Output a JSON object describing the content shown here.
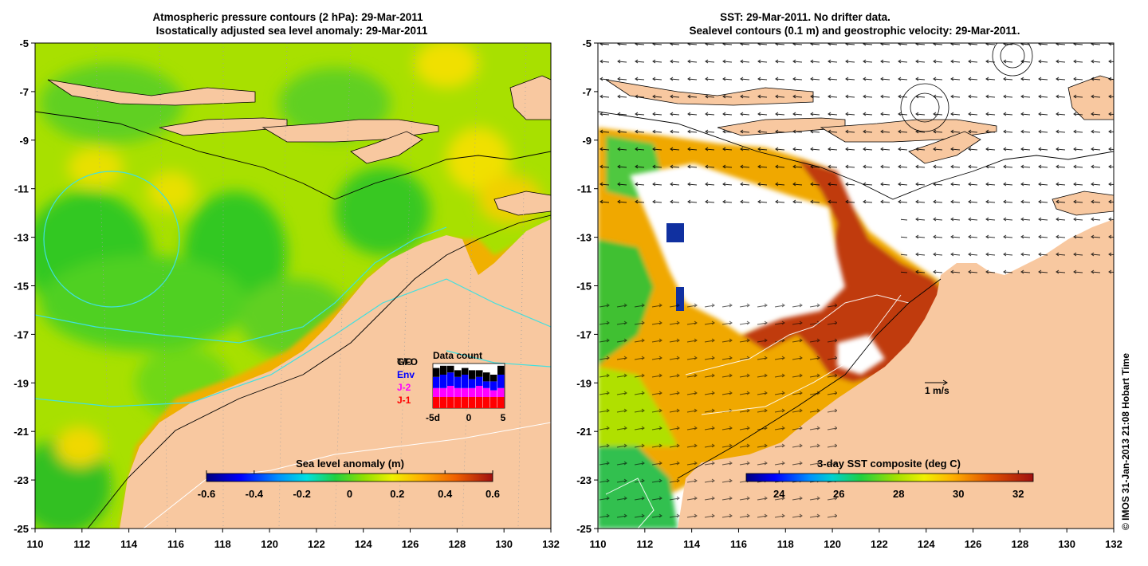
{
  "left_panel": {
    "title_line1": "Atmospheric pressure contours (2 hPa): 29-Mar-2011",
    "title_line2": "Isostatically adjusted sea level anomaly: 29-Mar-2011",
    "colorbar": {
      "label": "Sea level anomaly (m)",
      "ticks": [
        "-0.6",
        "-0.4",
        "-0.2",
        "0",
        "0.2",
        "0.4",
        "0.6"
      ],
      "tick_values": [
        -0.6,
        -0.4,
        -0.2,
        0,
        0.2,
        0.4,
        0.6
      ],
      "range": [
        -0.6,
        0.6
      ]
    },
    "inset": {
      "title": "Data count",
      "legend": [
        {
          "label": "GFO",
          "color": "#000000"
        },
        {
          "label": "Env",
          "color": "#0000ff"
        },
        {
          "label": "J-2",
          "color": "#ff00ff"
        },
        {
          "label": "J-1",
          "color": "#ff0000"
        }
      ],
      "overlay_label": "T/O",
      "x_ticks": [
        "-5d",
        "0",
        "5"
      ],
      "stack_fractions": [
        {
          "j1": 0.25,
          "j2": 0.2,
          "env": 0.25,
          "gfo": 0.2
        },
        {
          "j1": 0.25,
          "j2": 0.2,
          "env": 0.3,
          "gfo": 0.2
        },
        {
          "j1": 0.25,
          "j2": 0.25,
          "env": 0.3,
          "gfo": 0.15
        },
        {
          "j1": 0.25,
          "j2": 0.2,
          "env": 0.25,
          "gfo": 0.15
        },
        {
          "j1": 0.25,
          "j2": 0.2,
          "env": 0.3,
          "gfo": 0.15
        },
        {
          "j1": 0.25,
          "j2": 0.2,
          "env": 0.2,
          "gfo": 0.2
        },
        {
          "j1": 0.25,
          "j2": 0.25,
          "env": 0.2,
          "gfo": 0.15
        },
        {
          "j1": 0.25,
          "j2": 0.2,
          "env": 0.15,
          "gfo": 0.2
        },
        {
          "j1": 0.25,
          "j2": 0.15,
          "env": 0.2,
          "gfo": 0.15
        },
        {
          "j1": 0.25,
          "j2": 0.2,
          "env": 0.3,
          "gfo": 0.2
        }
      ]
    }
  },
  "right_panel": {
    "title_line1": "SST: 29-Mar-2011. No drifter data.",
    "title_line2": "Sealevel contours (0.1 m) and geostrophic velocity: 29-Mar-2011.",
    "colorbar": {
      "label": "3-day SST composite (deg C)",
      "ticks": [
        "24",
        "26",
        "28",
        "30",
        "32"
      ],
      "tick_values": [
        24,
        26,
        28,
        30,
        32
      ],
      "range": [
        22.9,
        32.5
      ]
    },
    "scale_arrow_label": "1 m/s"
  },
  "axes": {
    "x_ticks": [
      "110",
      "112",
      "114",
      "116",
      "118",
      "120",
      "122",
      "124",
      "126",
      "128",
      "130",
      "132"
    ],
    "y_ticks": [
      "-5",
      "-7",
      "-9",
      "-11",
      "-13",
      "-15",
      "-17",
      "-19",
      "-21",
      "-23",
      "-25"
    ]
  },
  "credit": "© IMOS 31-Jan-2013 21:08 Hobart Time",
  "colors": {
    "land": "#f8c8a0",
    "ocean_green": "#3ed21e",
    "ocean_yellowgreen": "#a0e000",
    "sst_orange": "#f0a000",
    "sst_red": "#c03000",
    "isobath": "#40e0e0"
  }
}
